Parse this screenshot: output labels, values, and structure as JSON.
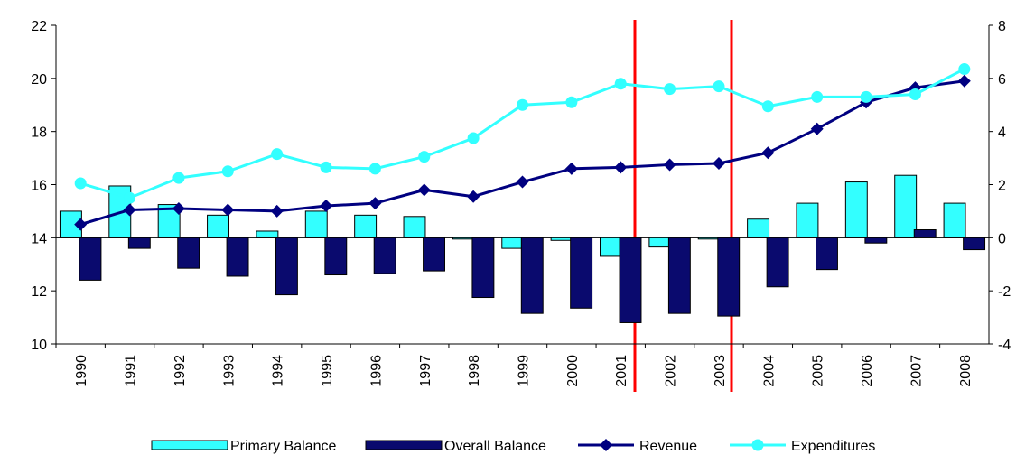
{
  "chart_data": {
    "type": "combo",
    "categories": [
      "1990",
      "1991",
      "1992",
      "1993",
      "1994",
      "1995",
      "1996",
      "1997",
      "1998",
      "1999",
      "2000",
      "2001",
      "2002",
      "2003",
      "2004",
      "2005",
      "2006",
      "2007",
      "2008"
    ],
    "series": [
      {
        "name": "Primary Balance",
        "type": "bar",
        "axis": "y2",
        "color": "#33ffff",
        "values": [
          1.0,
          1.95,
          1.25,
          0.85,
          0.25,
          1.0,
          0.85,
          0.8,
          -0.05,
          -0.4,
          -0.1,
          -0.7,
          -0.35,
          -0.05,
          0.7,
          1.3,
          2.1,
          2.35,
          1.3
        ]
      },
      {
        "name": "Overall Balance",
        "type": "bar",
        "axis": "y2",
        "color": "#0a0a6e",
        "values": [
          -1.6,
          -0.4,
          -1.15,
          -1.45,
          -2.15,
          -1.4,
          -1.35,
          -1.25,
          -2.25,
          -2.85,
          -2.65,
          -3.2,
          -2.85,
          -2.95,
          -1.85,
          -1.2,
          -0.2,
          0.3,
          -0.45
        ]
      },
      {
        "name": "Revenue",
        "type": "line",
        "color": "#000080",
        "values": [
          14.5,
          15.05,
          15.1,
          15.05,
          15.0,
          15.2,
          15.3,
          15.8,
          15.55,
          16.1,
          16.6,
          16.65,
          16.75,
          16.8,
          17.2,
          18.1,
          19.1,
          19.65,
          19.9
        ]
      },
      {
        "name": "Expenditures",
        "type": "line",
        "color": "#33ffff",
        "values": [
          16.05,
          15.5,
          16.25,
          16.5,
          17.15,
          16.65,
          16.6,
          17.05,
          17.75,
          19.0,
          19.1,
          19.8,
          19.6,
          19.7,
          18.95,
          19.3,
          19.3,
          19.4,
          20.35
        ]
      }
    ],
    "ylim": [
      10,
      22
    ],
    "yticks": [
      10,
      12,
      14,
      16,
      18,
      20,
      22
    ],
    "y2lim": [
      -4,
      8
    ],
    "y2ticks": [
      -4,
      -2,
      0,
      2,
      4,
      6,
      8
    ]
  }
}
